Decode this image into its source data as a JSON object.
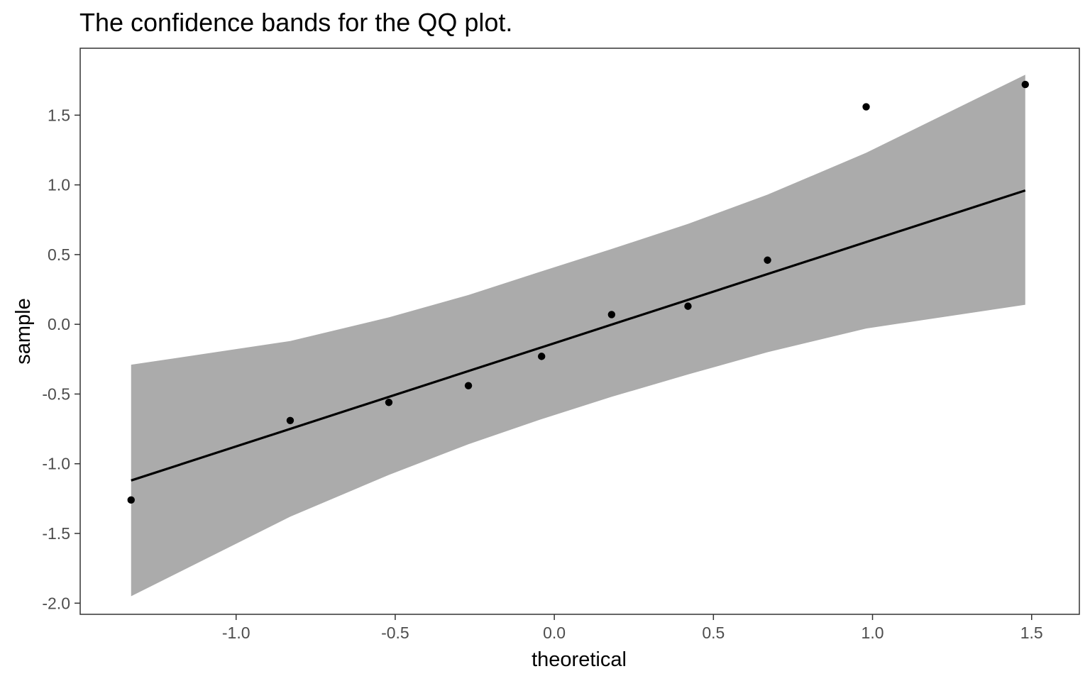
{
  "chart_data": {
    "type": "scatter",
    "title": "The confidence bands for the QQ plot.",
    "xlabel": "theoretical",
    "ylabel": "sample",
    "xlim": [
      -1.49,
      1.65
    ],
    "ylim": [
      -2.08,
      1.98
    ],
    "x_ticks": [
      -1.0,
      -0.5,
      0.0,
      0.5,
      1.0,
      1.5
    ],
    "x_tick_labels": [
      "-1.0",
      "-0.5",
      "0.0",
      "0.5",
      "1.0",
      "1.5"
    ],
    "y_ticks": [
      -2.0,
      -1.5,
      -1.0,
      -0.5,
      0.0,
      0.5,
      1.0,
      1.5
    ],
    "y_tick_labels": [
      "-2.0",
      "-1.5",
      "-1.0",
      "-0.5",
      "0.0",
      "0.5",
      "1.0",
      "1.5"
    ],
    "grid": false,
    "legend": "none",
    "points": {
      "x": [
        -1.33,
        -0.83,
        -0.52,
        -0.27,
        -0.04,
        0.18,
        0.42,
        0.67,
        0.98,
        1.48
      ],
      "y": [
        -1.26,
        -0.69,
        -0.56,
        -0.44,
        -0.23,
        0.07,
        0.13,
        0.46,
        1.56,
        1.72
      ]
    },
    "reference_line": {
      "x": [
        -1.33,
        1.48
      ],
      "y": [
        -1.12,
        0.96
      ]
    },
    "confidence_band": {
      "x": [
        -1.33,
        -0.83,
        -0.52,
        -0.27,
        -0.04,
        0.18,
        0.42,
        0.67,
        0.98,
        1.48
      ],
      "lower": [
        -1.95,
        -1.38,
        -1.08,
        -0.86,
        -0.68,
        -0.52,
        -0.36,
        -0.2,
        -0.03,
        0.14
      ],
      "upper": [
        -0.29,
        -0.12,
        0.05,
        0.21,
        0.38,
        0.54,
        0.72,
        0.93,
        1.23,
        1.79
      ]
    },
    "colors": {
      "band": "#ababab",
      "points": "#000000",
      "line": "#000000",
      "axis_text": "#4d4d4d",
      "title_text": "#000000",
      "panel_border": "#333333",
      "background": "#ffffff"
    }
  }
}
